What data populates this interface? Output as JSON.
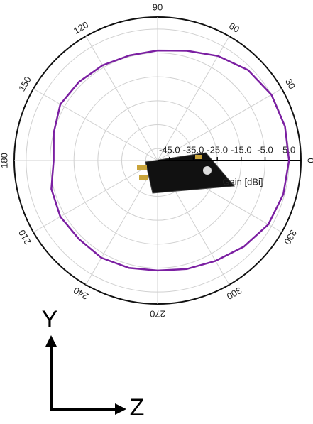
{
  "chart_data": {
    "type": "polar",
    "theta": [
      0,
      15,
      30,
      45,
      60,
      75,
      90,
      105,
      120,
      135,
      150,
      165,
      180,
      195,
      210,
      225,
      240,
      255,
      270,
      285,
      300,
      315,
      330,
      345,
      360
    ],
    "series": [
      {
        "color": "#7b1fa2",
        "values": [
          5.0,
          5.2,
          5.0,
          3.5,
          0.5,
          -2.5,
          -4,
          -4.5,
          -4,
          -3.5,
          -3,
          -5,
          -6.5,
          -4,
          -3,
          -3.5,
          -3,
          -3.5,
          -4,
          -3,
          -1.5,
          1,
          3.5,
          4.5,
          5.0
        ]
      }
    ],
    "thetaticks": [
      0,
      30,
      60,
      90,
      120,
      150,
      180,
      210,
      240,
      270,
      300,
      330
    ],
    "rlim": [
      -50,
      10
    ],
    "rticks": [
      {
        "value": -45,
        "label": "-45.0"
      },
      {
        "value": -35,
        "label": "-35.0"
      },
      {
        "value": -25,
        "label": "-25.0"
      },
      {
        "value": -15,
        "label": "-15.0"
      },
      {
        "value": -5,
        "label": "-5.0"
      },
      {
        "value": 5,
        "label": "5.0"
      }
    ],
    "rlabel": "Gain [dBi]",
    "grid": true
  },
  "orientation": {
    "vertical": "Y",
    "horizontal": "Z"
  }
}
